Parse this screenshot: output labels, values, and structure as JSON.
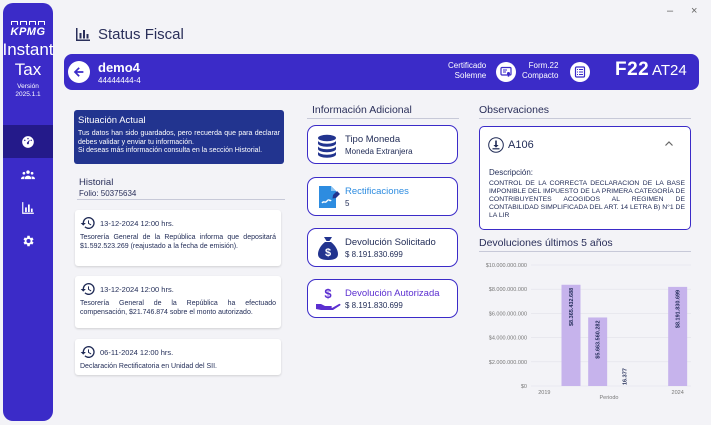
{
  "sidebar": {
    "logo": "KPMG",
    "app_line1": "Instant",
    "app_line2": "Tax",
    "version_label": "Versión",
    "version": "2025.1.1",
    "nav": [
      {
        "name": "dashboard-icon",
        "active": true
      },
      {
        "name": "users-icon",
        "active": false
      },
      {
        "name": "chart-icon",
        "active": false
      },
      {
        "name": "gear-icon",
        "active": false
      }
    ]
  },
  "window": {
    "minimize": "–",
    "close": "×"
  },
  "page": {
    "title": "Status Fiscal"
  },
  "header": {
    "company": "demo4",
    "rut": "44444444-4",
    "cert_line1": "Certificado",
    "cert_line2": "Solemne",
    "form_line1": "Form.22",
    "form_line2": "Compacto",
    "form_code": "F22",
    "year": "AT24"
  },
  "situacion": {
    "title": "Situación Actual",
    "text": "Tus datos han sido guardados, pero recuerda que para declarar debes validar y enviar tu información.",
    "text2": "Si deseas más información consulta en la sección Historial."
  },
  "historial": {
    "title": "Historial",
    "folio": "Folio: 50375634",
    "items": [
      {
        "date": "13-12-2024 12:00 hrs.",
        "text": "Tesorería General de la República informa que depositará $1.592.523.269 (reajustado a la fecha de emisión)."
      },
      {
        "date": "13-12-2024 12:00 hrs.",
        "text": "Tesorería General de la República ha efectuado compensación, $21.746.874 sobre el monto autorizado."
      },
      {
        "date": "06-11-2024 12:00 hrs.",
        "text": "Declaración Rectificatoria en Unidad del SII."
      }
    ]
  },
  "info": {
    "title": "Información Adicional",
    "cards": [
      {
        "label": "Tipo Moneda",
        "value": "Moneda Extranjera",
        "icon": "coins-icon"
      },
      {
        "label": "Rectificaciones",
        "value": "5",
        "icon": "edit-document-icon"
      },
      {
        "label": "Devolución Solicitado",
        "value": "$ 8.191.830.699",
        "icon": "money-bag-icon"
      },
      {
        "label": "Devolución Autorizada",
        "value": "$ 8.191.830.699",
        "icon": "hand-money-icon"
      }
    ]
  },
  "observaciones": {
    "title": "Observaciones",
    "code": "A106",
    "desc_label": "Descripción:",
    "desc": "CONTROL DE LA CORRECTA DECLARACION DE LA BASE IMPONIBLE DEL IMPUESTO DE LA PRIMERA CATEGORÍA DE CONTRIBUYENTES ACOGIDOS AL REGIMEN DE CONTABILIDAD SIMPLIFICADA DEL ART. 14 LETRA B) N°1 DE LA LIR"
  },
  "devoluciones": {
    "title": "Devoluciones últimos 5 años"
  },
  "chart_data": {
    "type": "bar",
    "xlabel": "Periodo",
    "ylim": [
      0,
      10000000000
    ],
    "y_ticks": [
      "$0",
      "$2.000.000.000",
      "$4.000.000.000",
      "$6.000.000.000",
      "$8.000.000.000",
      "$10.000.000.000"
    ],
    "x_tick_labels": [
      {
        "label": "2019",
        "index": 0
      },
      {
        "label": "2024",
        "index": 5
      }
    ],
    "bars": [
      {
        "value": 0,
        "label": ""
      },
      {
        "value": 8365432688,
        "label": "$8.365.432.688"
      },
      {
        "value": 5663560282,
        "label": "$5.663.560.282"
      },
      {
        "value": 16377,
        "label": "16.377"
      },
      {
        "value": 0,
        "label": ""
      },
      {
        "value": 8191830699,
        "label": "$8.191.830.699"
      }
    ],
    "bar_color": "#c6b3ec",
    "grid": true
  }
}
